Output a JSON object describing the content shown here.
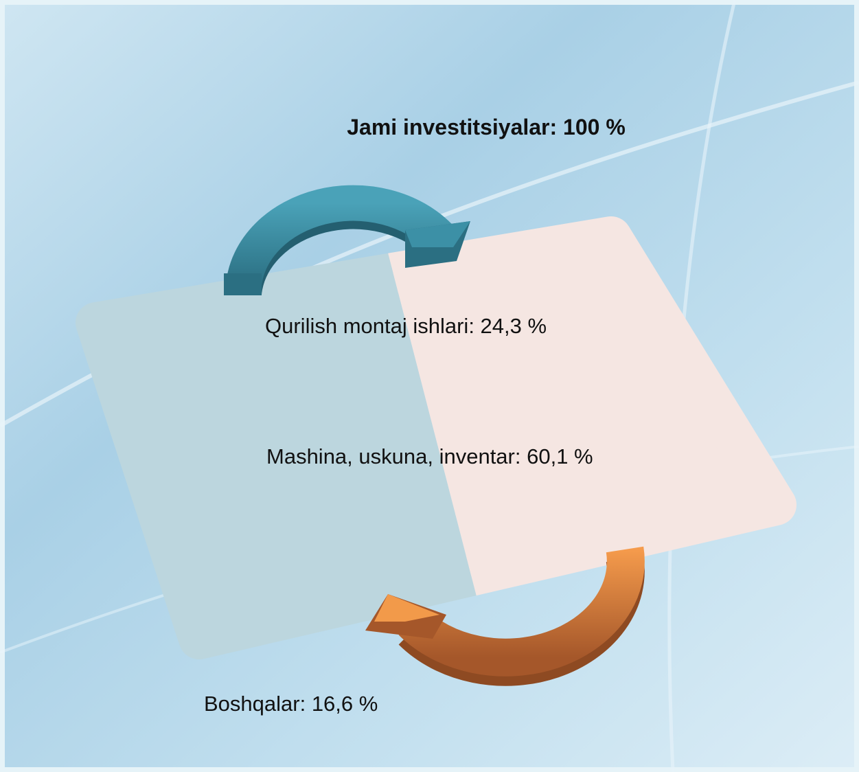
{
  "title": "Jami investitsiyalar: 100 %",
  "items": [
    "Qurilish montaj ishlari: 24,3 %",
    "Mashina, uskuna, inventar: 60,1 %",
    "Boshqalar: 16,6 %"
  ]
}
